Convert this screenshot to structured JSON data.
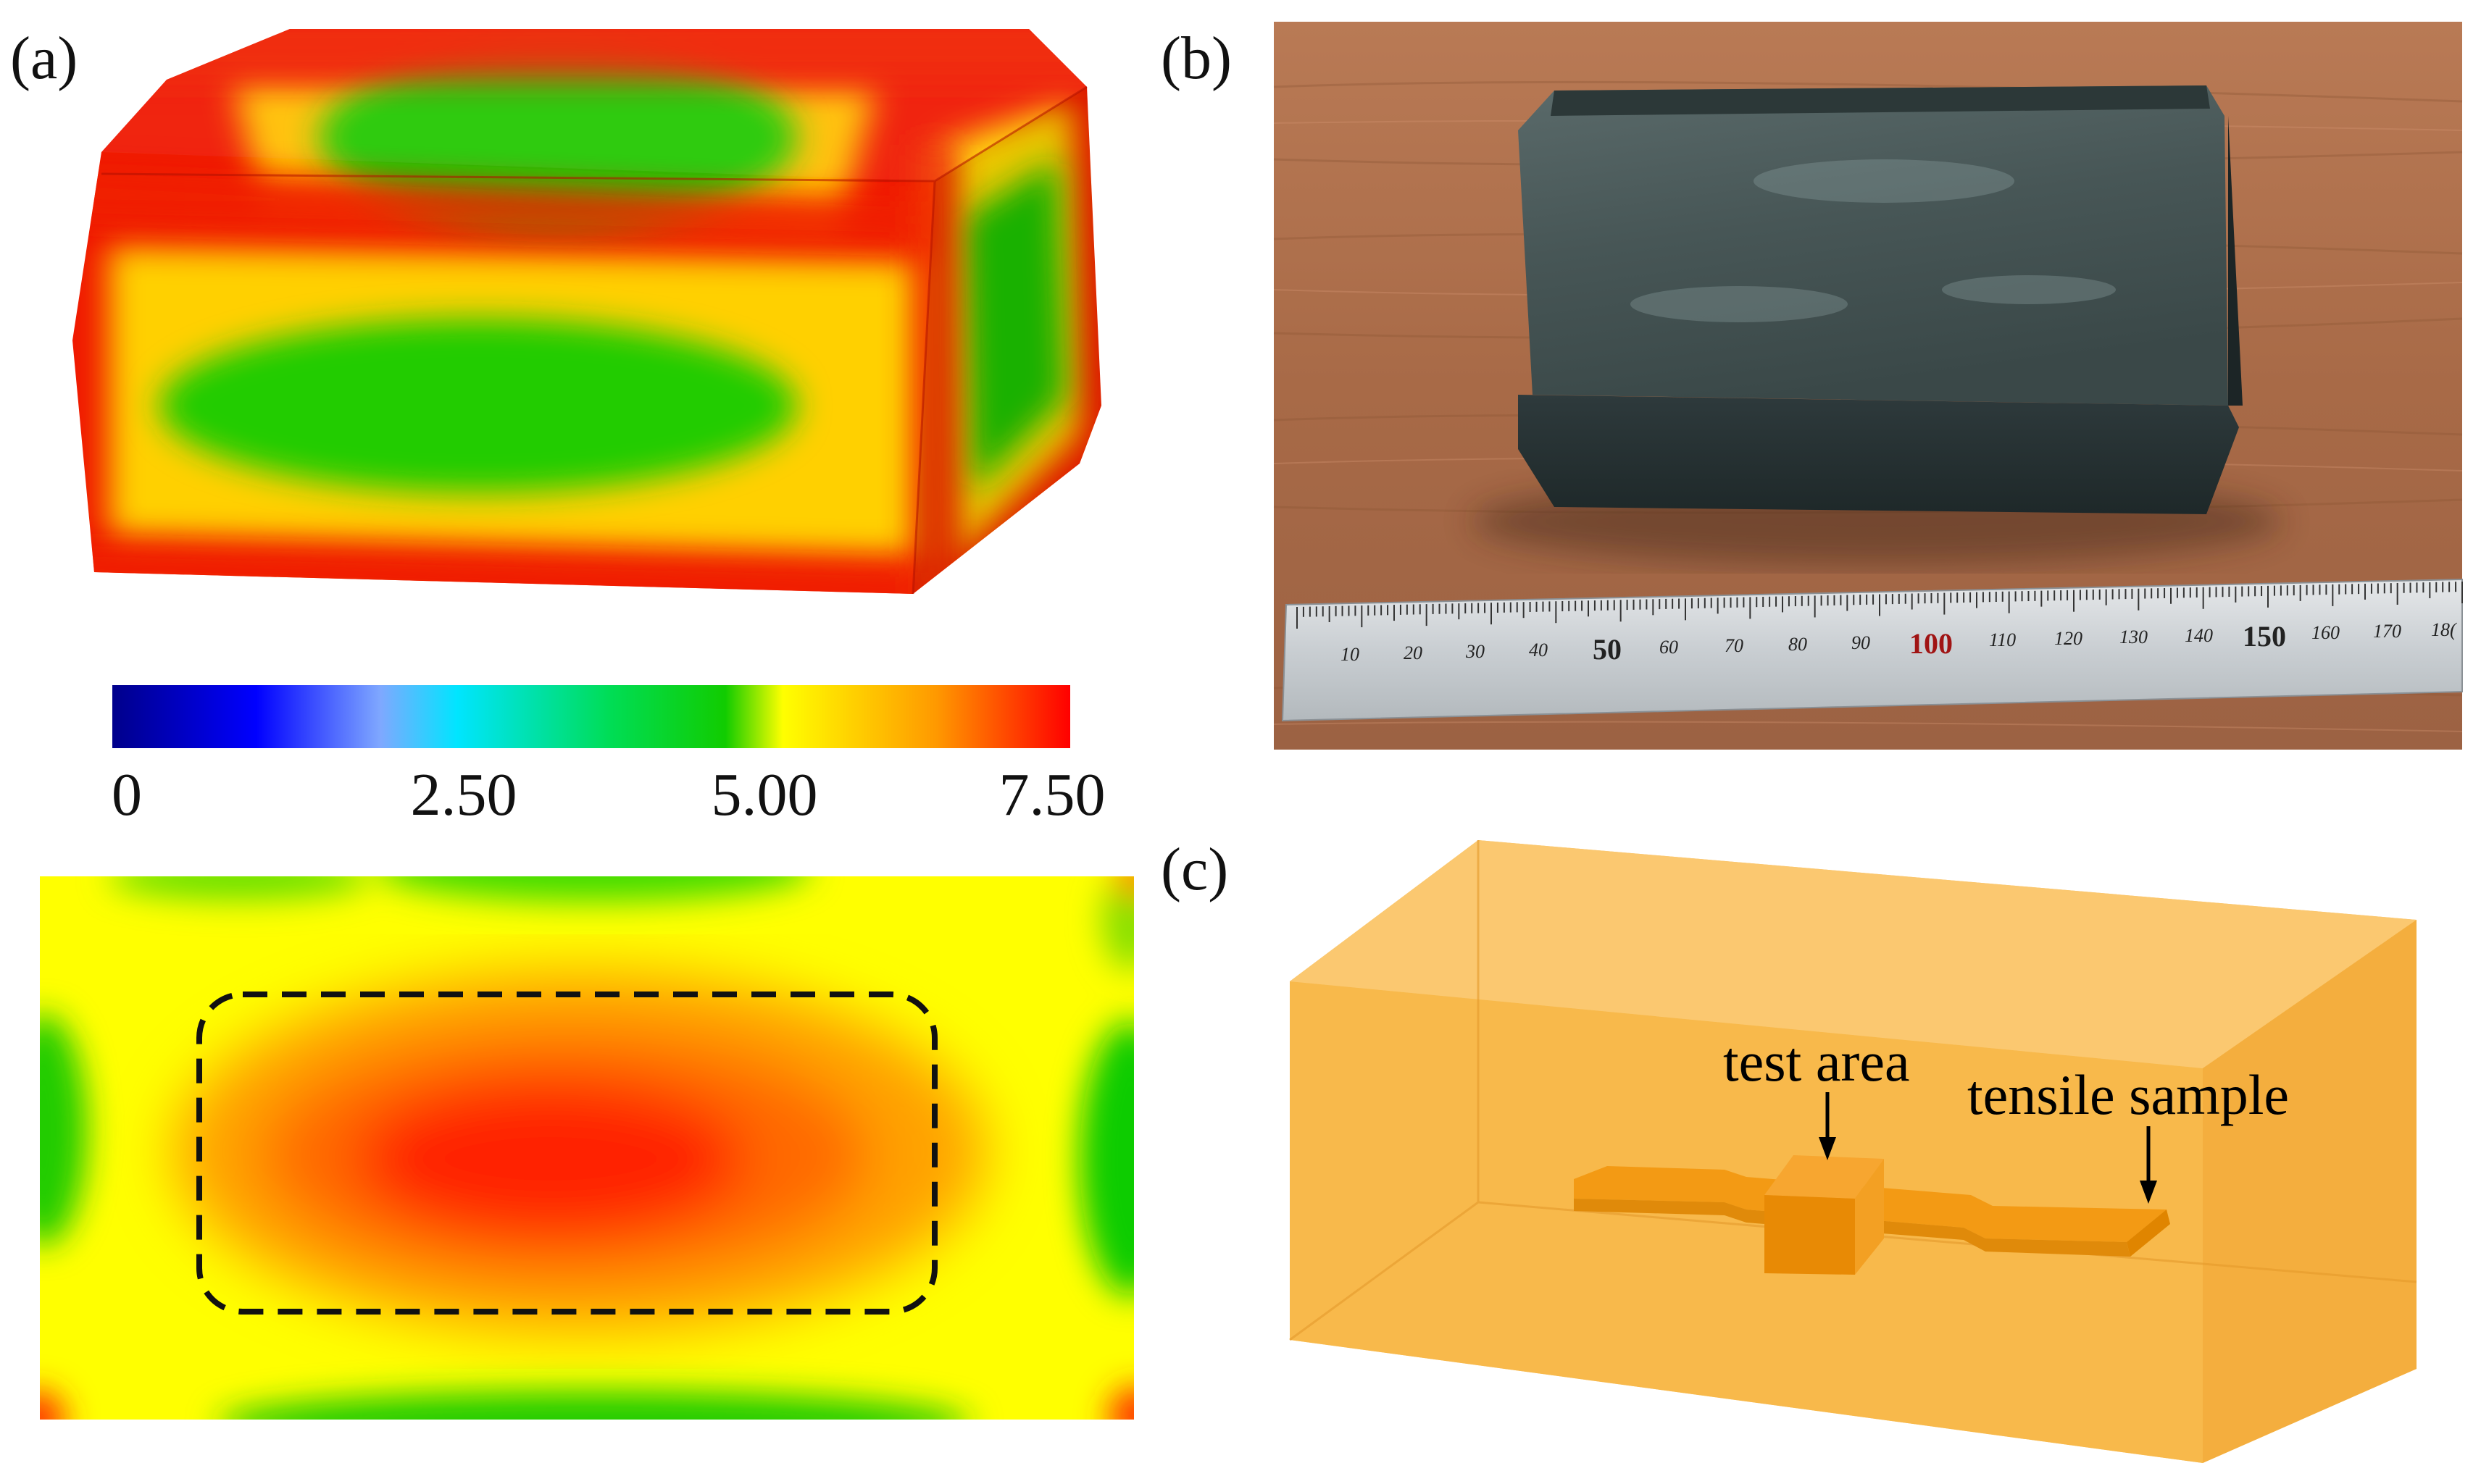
{
  "panels": {
    "a": {
      "label": "(a)"
    },
    "b": {
      "label": "(b)"
    },
    "c": {
      "label": "(c)"
    }
  },
  "colorbar": {
    "ticks": [
      "0",
      "2.50",
      "5.00",
      "7.50"
    ],
    "min": 0,
    "max": 7.5,
    "colors": [
      "#00008b",
      "#0000ff",
      "#7fa8ff",
      "#00e5ff",
      "#00e060",
      "#00cc00",
      "#ffff00",
      "#ff9900",
      "#ff0000"
    ]
  },
  "ruler": {
    "small_labels": [
      "10",
      "20",
      "30",
      "40",
      "60",
      "70",
      "80",
      "90",
      "110",
      "120",
      "130",
      "140",
      "160",
      "170",
      "18("
    ],
    "big_labels": [
      "50",
      "100",
      "150"
    ]
  },
  "schematic": {
    "annotation_test_area": "test area",
    "annotation_tensile_sample": "tensile sample",
    "box_color": "#f8b84a",
    "sample_color": "#f39a14"
  }
}
